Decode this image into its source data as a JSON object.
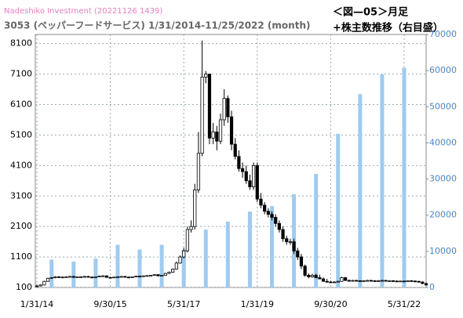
{
  "chart_data": {
    "type": "candlestick",
    "watermark": "Nadeshiko Investment  (20221126 1439)",
    "title": "3053 (ペッパーフードサービス) 1/31/2014-11/25/2022 (month)",
    "figure_label": "＜図—05＞月足",
    "figure_note": "+株主数推移（右目盛）",
    "categories": [
      "1/31/14",
      null,
      null,
      null,
      null,
      null,
      null,
      null,
      null,
      null,
      null,
      null,
      null,
      null,
      null,
      null,
      null,
      null,
      null,
      null,
      "9/30/15",
      null,
      null,
      null,
      null,
      null,
      null,
      null,
      null,
      null,
      null,
      null,
      null,
      null,
      null,
      null,
      null,
      null,
      null,
      null,
      "5/31/17",
      null,
      null,
      null,
      null,
      null,
      null,
      null,
      null,
      null,
      null,
      null,
      null,
      null,
      null,
      null,
      null,
      null,
      null,
      null,
      "1/31/19",
      null,
      null,
      null,
      null,
      null,
      null,
      null,
      null,
      null,
      null,
      null,
      null,
      null,
      null,
      null,
      null,
      null,
      null,
      null,
      "9/30/20",
      null,
      null,
      null,
      null,
      null,
      null,
      null,
      null,
      null,
      null,
      null,
      null,
      null,
      null,
      null,
      null,
      null,
      null,
      null,
      "5/31/22",
      null,
      null,
      null,
      null,
      null,
      null
    ],
    "open": [
      150,
      150,
      180,
      300,
      400,
      420,
      450,
      430,
      440,
      450,
      460,
      430,
      450,
      450,
      460,
      440,
      430,
      450,
      470,
      480,
      430,
      420,
      440,
      450,
      460,
      440,
      430,
      450,
      470,
      460,
      480,
      490,
      500,
      520,
      480,
      500,
      560,
      600,
      700,
      900,
      1100,
      1300,
      2000,
      2100,
      3300,
      4500,
      7000,
      7100,
      5000,
      5200,
      4900,
      5600,
      6300,
      5700,
      4800,
      4400,
      4000,
      3900,
      3600,
      3400,
      4100,
      3000,
      2800,
      2600,
      2500,
      2400,
      2200,
      2000,
      1700,
      1600,
      1600,
      1300,
      1100,
      800,
      500,
      450,
      500,
      420,
      380,
      300,
      280,
      270,
      280,
      300,
      420,
      330,
      320,
      330,
      320,
      310,
      320,
      330,
      320,
      310,
      320,
      330,
      320,
      320,
      310,
      300,
      310,
      300,
      320,
      310,
      300,
      280,
      230
    ],
    "high": [
      200,
      200,
      320,
      420,
      440,
      470,
      470,
      460,
      470,
      480,
      480,
      460,
      470,
      480,
      480,
      460,
      460,
      490,
      500,
      500,
      450,
      450,
      470,
      480,
      480,
      460,
      460,
      480,
      490,
      490,
      500,
      510,
      530,
      540,
      510,
      580,
      620,
      720,
      950,
      1150,
      1400,
      2100,
      2300,
      3500,
      5200,
      8200,
      7200,
      7100,
      5500,
      5400,
      5800,
      6600,
      6400,
      5900,
      5000,
      4600,
      4200,
      4100,
      3800,
      4200,
      4200,
      3200,
      2900,
      2700,
      2600,
      2500,
      2300,
      2100,
      1800,
      1700,
      1700,
      1400,
      1200,
      850,
      560,
      550,
      550,
      520,
      430,
      380,
      320,
      300,
      320,
      450,
      450,
      360,
      350,
      350,
      340,
      340,
      350,
      350,
      340,
      340,
      350,
      350,
      340,
      340,
      330,
      320,
      320,
      330,
      340,
      330,
      320,
      300,
      250
    ],
    "low": [
      130,
      140,
      170,
      290,
      390,
      400,
      420,
      420,
      430,
      440,
      420,
      420,
      430,
      440,
      430,
      420,
      420,
      440,
      460,
      420,
      400,
      410,
      430,
      440,
      430,
      420,
      420,
      440,
      450,
      450,
      470,
      480,
      490,
      470,
      470,
      490,
      540,
      580,
      680,
      880,
      1050,
      1250,
      1900,
      2000,
      3200,
      4400,
      6800,
      4800,
      4800,
      4600,
      4800,
      5400,
      5500,
      4600,
      4300,
      3900,
      3700,
      3500,
      3300,
      3300,
      2900,
      2700,
      2500,
      2400,
      2300,
      2100,
      1900,
      1600,
      1500,
      1500,
      1200,
      1000,
      700,
      450,
      400,
      420,
      400,
      370,
      290,
      260,
      250,
      250,
      270,
      290,
      310,
      300,
      300,
      300,
      290,
      300,
      310,
      300,
      290,
      300,
      310,
      300,
      300,
      290,
      280,
      290,
      280,
      290,
      300,
      290,
      260,
      210,
      160
    ],
    "close": [
      150,
      180,
      300,
      400,
      420,
      450,
      430,
      440,
      450,
      460,
      430,
      450,
      450,
      460,
      440,
      430,
      450,
      470,
      480,
      430,
      420,
      440,
      450,
      460,
      440,
      430,
      450,
      470,
      460,
      480,
      490,
      500,
      520,
      480,
      500,
      560,
      600,
      700,
      900,
      1100,
      1300,
      2000,
      2100,
      3300,
      4500,
      7000,
      7100,
      5000,
      5200,
      4900,
      5600,
      6300,
      5700,
      4800,
      4400,
      4000,
      3900,
      3600,
      3400,
      4100,
      3000,
      2800,
      2600,
      2500,
      2400,
      2200,
      2000,
      1700,
      1600,
      1600,
      1300,
      1100,
      800,
      500,
      450,
      500,
      420,
      380,
      300,
      280,
      270,
      280,
      300,
      420,
      330,
      320,
      330,
      320,
      310,
      320,
      330,
      320,
      310,
      320,
      330,
      320,
      320,
      310,
      300,
      310,
      300,
      320,
      310,
      300,
      280,
      230,
      180
    ],
    "up_color": "#ffffff",
    "down_color": "#000000",
    "shareholders": {
      "axis": "y2",
      "color": "#9fcbef",
      "x": [
        4,
        10,
        16,
        22,
        28,
        34,
        40,
        46,
        52,
        58,
        64,
        70,
        76,
        82,
        88,
        94,
        100
      ],
      "values": [
        7700,
        7200,
        8000,
        11800,
        10500,
        11800,
        10500,
        16000,
        18200,
        21000,
        22500,
        25800,
        31400,
        42500,
        53500,
        59000,
        60800
      ]
    },
    "ylim": [
      100,
      8400
    ],
    "yticks": [
      100,
      1100,
      2100,
      3100,
      4100,
      5100,
      6100,
      7100,
      8100
    ],
    "y2lim": [
      0,
      70000
    ],
    "y2ticks": [
      0,
      10000,
      20000,
      30000,
      40000,
      50000,
      60000,
      70000
    ],
    "grid": true
  }
}
